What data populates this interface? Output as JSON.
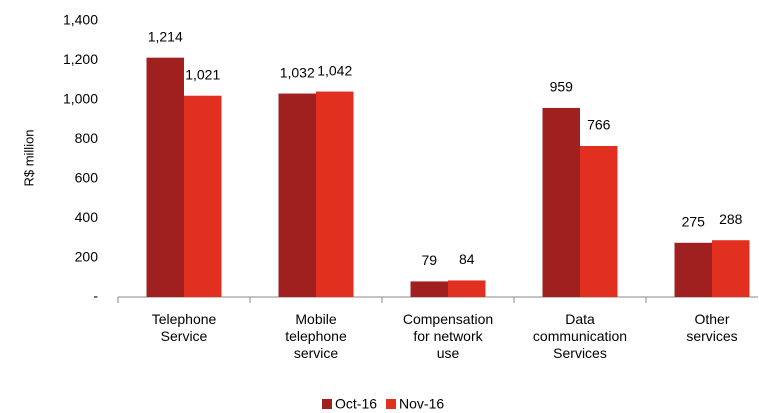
{
  "chart_data": {
    "type": "bar",
    "y_label": "R$ million",
    "categories": [
      "Telephone\nService",
      "Mobile\ntelephone\nservice",
      "Compensation\nfor network\nuse",
      "Data\ncommunication\nServices",
      "Other\nservices"
    ],
    "series": [
      {
        "name": "Oct-16",
        "color": "#a0201f",
        "values": [
          1214,
          1032,
          79,
          959,
          275
        ],
        "value_labels": [
          "1,214",
          "1,032",
          "79",
          "959",
          "275"
        ]
      },
      {
        "name": "Nov-16",
        "color": "#e1301f",
        "values": [
          1021,
          1042,
          84,
          766,
          288
        ],
        "value_labels": [
          "1,021",
          "1,042",
          "84",
          "766",
          "288"
        ]
      }
    ],
    "ylim": [
      0,
      1400
    ],
    "yticks": [
      {
        "value": 0,
        "label": "-"
      },
      200,
      400,
      600,
      800,
      {
        "value": 1000,
        "label": "1,000"
      },
      {
        "value": 1200,
        "label": "1,200"
      },
      {
        "value": 1400,
        "label": "1,400"
      }
    ],
    "grid": false,
    "legend": "bottom"
  }
}
